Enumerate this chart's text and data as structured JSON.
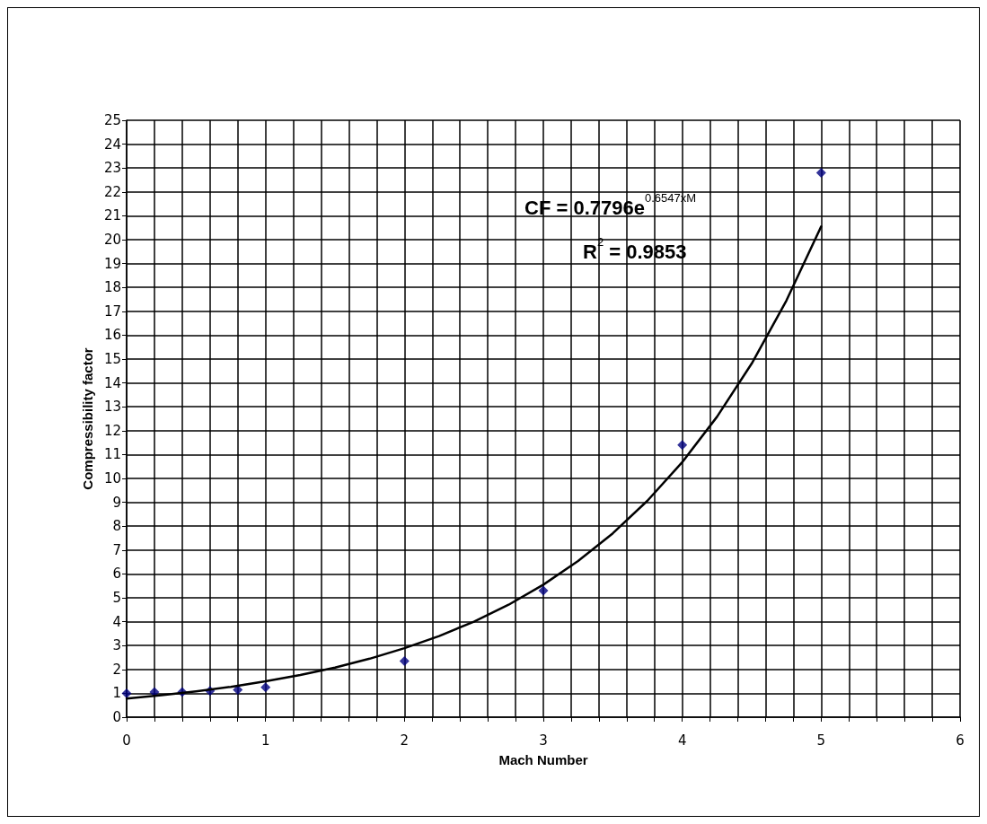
{
  "chart_data": {
    "type": "scatter",
    "xlabel": "Mach Number",
    "ylabel": "Compressibility factor",
    "annotations": [
      "CF = 0.7796e$^{0.6547xM}$",
      "R$^{2}$ = 0.9853"
    ],
    "xlim": [
      0,
      6
    ],
    "xticks": [
      0,
      {
        "value": 0.2,
        "label": null
      },
      {
        "value": 0.4,
        "label": null
      },
      {
        "value": 0.6,
        "label": null
      },
      {
        "value": 0.8,
        "label": null
      },
      1,
      {
        "value": 1.2,
        "label": null
      },
      {
        "value": 1.4,
        "label": null
      },
      {
        "value": 1.6,
        "label": null
      },
      {
        "value": 1.8,
        "label": null
      },
      2,
      {
        "value": 2.2,
        "label": null
      },
      {
        "value": 2.4,
        "label": null
      },
      {
        "value": 2.6,
        "label": null
      },
      {
        "value": 2.8,
        "label": null
      },
      3,
      {
        "value": 3.2,
        "label": null
      },
      {
        "value": 3.4,
        "label": null
      },
      {
        "value": 3.6,
        "label": null
      },
      {
        "value": 3.8,
        "label": null
      },
      4,
      {
        "value": 4.2,
        "label": null
      },
      {
        "value": 4.4,
        "label": null
      },
      {
        "value": 4.6,
        "label": null
      },
      {
        "value": 4.8,
        "label": null
      },
      5,
      {
        "value": 5.2,
        "label": null
      },
      {
        "value": 5.4,
        "label": null
      },
      {
        "value": 5.6,
        "label": null
      },
      {
        "value": 5.8,
        "label": null
      },
      6
    ],
    "ylim": [
      0,
      25
    ],
    "yticks": [
      0,
      1,
      2,
      3,
      4,
      5,
      6,
      7,
      8,
      9,
      10,
      11,
      12,
      13,
      14,
      15,
      16,
      17,
      18,
      19,
      20,
      21,
      22,
      23,
      24,
      25
    ],
    "grid": true,
    "series": [
      {
        "type": "scatter",
        "color": "#000080",
        "marker": "diamond",
        "x": [
          0,
          0.2,
          0.4,
          0.6,
          0.8,
          1,
          2,
          3,
          4,
          5
        ],
        "values": [
          1,
          1.05,
          1.05,
          1.1,
          1.15,
          1.25,
          2.35,
          5.3,
          11.4,
          22.8
        ]
      },
      {
        "type": "line",
        "color": "#000000",
        "marker": "none",
        "line_style": "solid",
        "x": [
          0,
          0.25,
          0.5,
          0.75,
          1,
          1.25,
          1.5,
          1.75,
          2,
          2.25,
          2.5,
          2.75,
          3,
          3.25,
          3.5,
          3.75,
          4,
          4.25,
          4.5,
          4.75,
          5
        ],
        "values": [
          0.78,
          0.92,
          1.08,
          1.27,
          1.5,
          1.77,
          2.08,
          2.45,
          2.89,
          3.4,
          4,
          4.71,
          5.55,
          6.54,
          7.7,
          9.07,
          10.68,
          12.58,
          14.81,
          17.45,
          20.55
        ]
      }
    ]
  }
}
